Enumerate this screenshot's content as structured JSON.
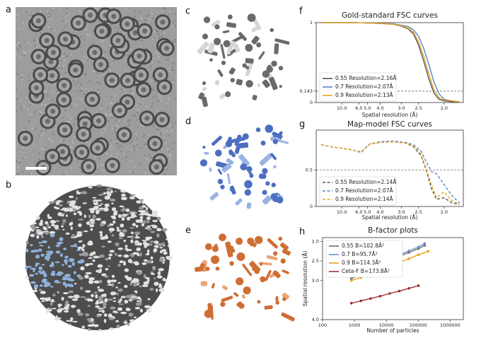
{
  "panel_labels": [
    "a",
    "b",
    "c",
    "d",
    "e",
    "f",
    "g",
    "h"
  ],
  "chart_data": [
    {
      "type": "line",
      "title": "Gold-standard FSC curves",
      "x_label": "Spatial resolution (Å)",
      "x": [
        0.02,
        0.05,
        0.1,
        0.15,
        0.2,
        0.25,
        0.3,
        0.33,
        0.36,
        0.38,
        0.4,
        0.42,
        0.44,
        0.46,
        0.48,
        0.5,
        0.53,
        0.56
      ],
      "series": [
        {
          "name": "0.55  Resolution=2.16Å",
          "color": "#555555",
          "values": [
            1,
            1,
            1,
            1,
            0.995,
            0.99,
            0.98,
            0.96,
            0.92,
            0.86,
            0.72,
            0.52,
            0.3,
            0.12,
            0.04,
            0.02,
            0.01,
            0.01
          ]
        },
        {
          "name": "0.7    Resolution=2.07Å",
          "color": "#5b84c9",
          "values": [
            1,
            1,
            1,
            1,
            0.995,
            0.99,
            0.985,
            0.97,
            0.95,
            0.91,
            0.83,
            0.68,
            0.48,
            0.26,
            0.11,
            0.04,
            0.02,
            0.01
          ]
        },
        {
          "name": "0.9    Resolution=2.13Å",
          "color": "#e8a51c",
          "values": [
            1,
            1,
            1,
            1,
            0.995,
            0.99,
            0.98,
            0.965,
            0.93,
            0.88,
            0.76,
            0.58,
            0.36,
            0.16,
            0.06,
            0.03,
            0.02,
            0.01
          ]
        }
      ],
      "xlim": [
        0,
        0.575
      ],
      "ylim": [
        0,
        1
      ],
      "xticks": [
        {
          "value": 0.1,
          "label": "10.0"
        },
        {
          "value": 0.1667,
          "label": "6.0"
        },
        {
          "value": 0.2,
          "label": "5.0"
        },
        {
          "value": 0.25,
          "label": "4.0"
        },
        {
          "value": 0.3333,
          "label": "3.0"
        },
        {
          "value": 0.4,
          "label": "2.5"
        },
        {
          "value": 0.5,
          "label": "2.0"
        }
      ],
      "yticks": [
        0,
        0.143,
        1
      ],
      "threshold": 0.143,
      "line_style": "solid",
      "legend": "lower left"
    },
    {
      "type": "line",
      "title": "Map-model FSC curves",
      "x_label": "Spatial resolution (Å)",
      "x": [
        0.02,
        0.06,
        0.1,
        0.14,
        0.175,
        0.21,
        0.25,
        0.3,
        0.35,
        0.38,
        0.41,
        0.43,
        0.45,
        0.47,
        0.5,
        0.53,
        0.56
      ],
      "series": [
        {
          "name": "0.55  Resolution=2.14Å",
          "color": "#555555",
          "values": [
            0.85,
            0.82,
            0.8,
            0.78,
            0.74,
            0.86,
            0.88,
            0.89,
            0.87,
            0.82,
            0.7,
            0.5,
            0.25,
            0.1,
            0.12,
            0.05,
            0.03
          ]
        },
        {
          "name": "0.7    Resolution=2.07Å",
          "color": "#5b84c9",
          "values": [
            0.85,
            0.82,
            0.8,
            0.78,
            0.75,
            0.86,
            0.89,
            0.9,
            0.88,
            0.85,
            0.76,
            0.62,
            0.48,
            0.45,
            0.3,
            0.15,
            0.05
          ]
        },
        {
          "name": "0.9    Resolution=2.14Å",
          "color": "#e8a51c",
          "values": [
            0.85,
            0.82,
            0.8,
            0.78,
            0.74,
            0.86,
            0.88,
            0.89,
            0.87,
            0.83,
            0.72,
            0.52,
            0.3,
            0.12,
            0.2,
            0.08,
            0.03
          ]
        }
      ],
      "xlim": [
        0,
        0.575
      ],
      "ylim": [
        0,
        1.05
      ],
      "xticks": [
        {
          "value": 0.1,
          "label": "10.0"
        },
        {
          "value": 0.1667,
          "label": "6.0"
        },
        {
          "value": 0.2,
          "label": "5.0"
        },
        {
          "value": 0.25,
          "label": "4.0"
        },
        {
          "value": 0.3333,
          "label": "3.0"
        },
        {
          "value": 0.4,
          "label": "2.5"
        },
        {
          "value": 0.5,
          "label": "2.0"
        }
      ],
      "yticks": [
        0,
        0.5
      ],
      "threshold": 0.5,
      "line_style": "dashed",
      "legend": "lower left"
    },
    {
      "type": "line",
      "title": "B-factor plots",
      "x_label": "Number of particles",
      "y_label": "Spatial resolution (Å)",
      "series": [
        {
          "name": "0.55  B=102.8Å²",
          "color": "#6b6b6b",
          "x": [
            800,
            1600,
            3200,
            6400,
            12800,
            25600,
            51200,
            102400,
            160000
          ],
          "values": [
            2.95,
            2.85,
            2.72,
            2.6,
            2.48,
            2.38,
            2.28,
            2.18,
            2.1
          ]
        },
        {
          "name": "0.7    B=95.7Å²",
          "color": "#6f93d0",
          "x": [
            800,
            1600,
            3200,
            6400,
            12800,
            25600,
            51200,
            102400,
            160000
          ],
          "values": [
            2.92,
            2.8,
            2.68,
            2.56,
            2.44,
            2.34,
            2.24,
            2.14,
            2.05
          ]
        },
        {
          "name": "0.9    B=114.3Å²",
          "color": "#e8a51c",
          "x": [
            800,
            1600,
            3200,
            6400,
            12800,
            25600,
            51200,
            102400,
            204800
          ],
          "values": [
            3.0,
            2.92,
            2.84,
            2.74,
            2.64,
            2.54,
            2.44,
            2.34,
            2.25
          ]
        },
        {
          "name": "Ceta-F B=173.8Å²",
          "color": "#a03030",
          "x": [
            800,
            1600,
            3200,
            6400,
            12800,
            25600,
            51200,
            102400
          ],
          "values": [
            3.58,
            3.52,
            3.46,
            3.4,
            3.33,
            3.27,
            3.2,
            3.13
          ]
        }
      ],
      "xlim": [
        100,
        2600000
      ],
      "xlog": true,
      "ylim": [
        4.0,
        1.9
      ],
      "xticks": [
        100,
        1000,
        10000,
        100000,
        1000000
      ],
      "yticks": [
        {
          "value": 2,
          "label": "2.0"
        },
        {
          "value": 2.5,
          "label": "2.5"
        },
        {
          "value": 3,
          "label": "3.0"
        },
        {
          "value": 4,
          "label": "4.0"
        }
      ],
      "markers": true,
      "line_style": "solid",
      "legend": "upper left"
    }
  ]
}
